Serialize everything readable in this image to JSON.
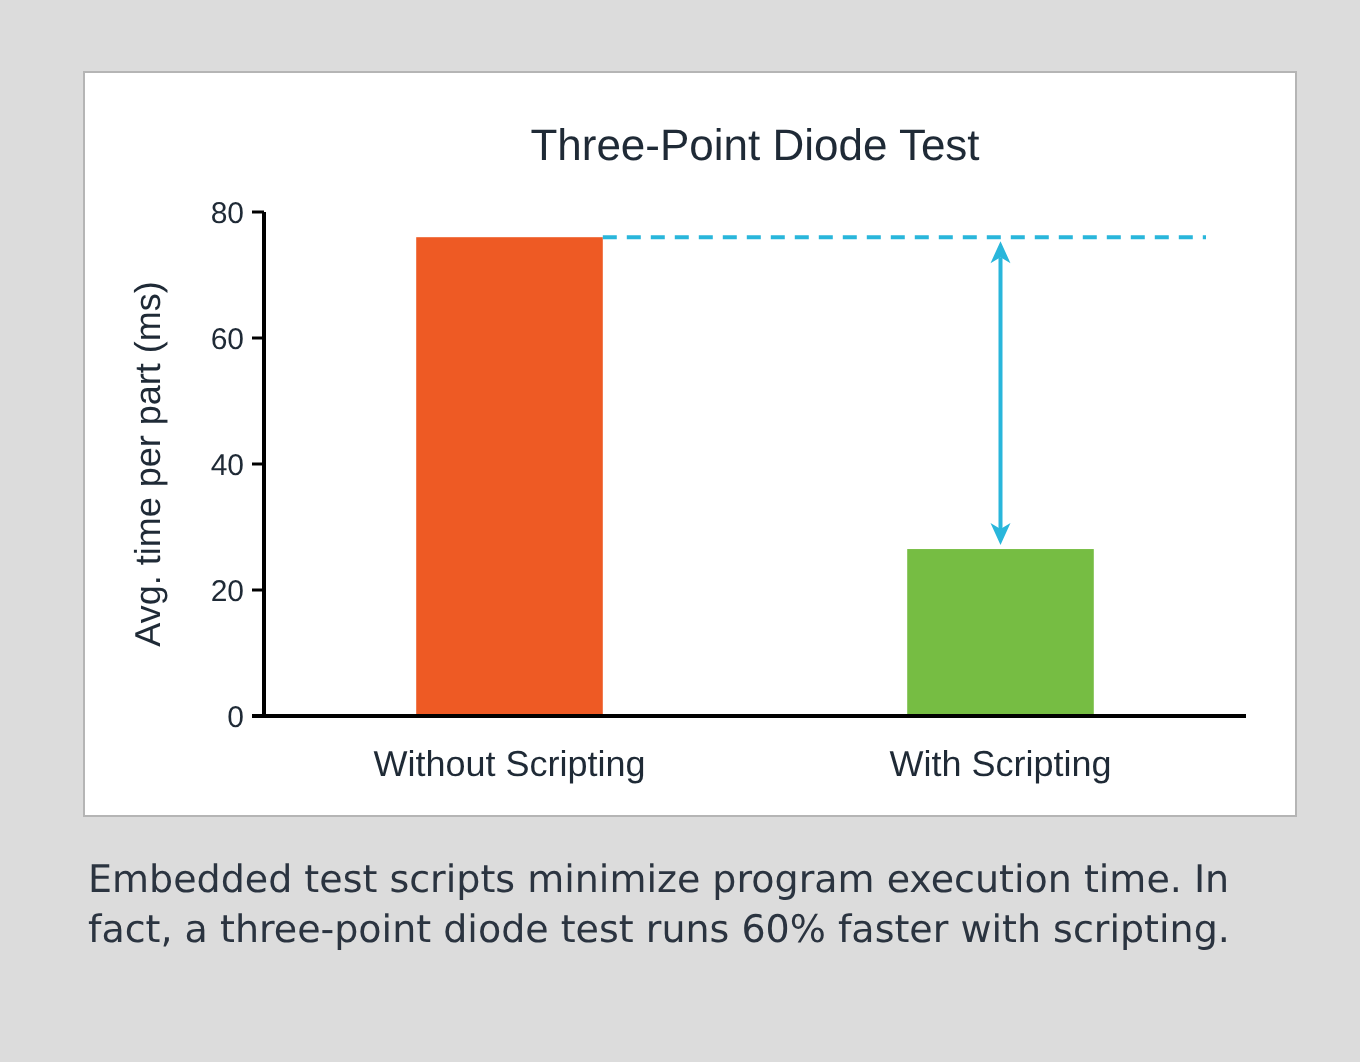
{
  "chart_data": {
    "type": "bar",
    "title": "Three-Point Diode Test",
    "ylabel": "Avg. time per part (ms)",
    "categories": [
      "Without Scripting",
      "With Scripting"
    ],
    "values": [
      76,
      26.5
    ],
    "colors": [
      "#ee5a24",
      "#76bd43"
    ],
    "ylim": [
      0,
      80
    ],
    "yticks": [
      0,
      20,
      40,
      60,
      80
    ],
    "grid": false,
    "ref_lines": [
      {
        "axis": "y",
        "value": 76,
        "color": "#29b6db",
        "line_style": "dashed"
      }
    ],
    "annotations": [
      "Embedded test scripts minimize program execution time. In fact, a three-point diode test runs 60% faster with scripting."
    ]
  }
}
